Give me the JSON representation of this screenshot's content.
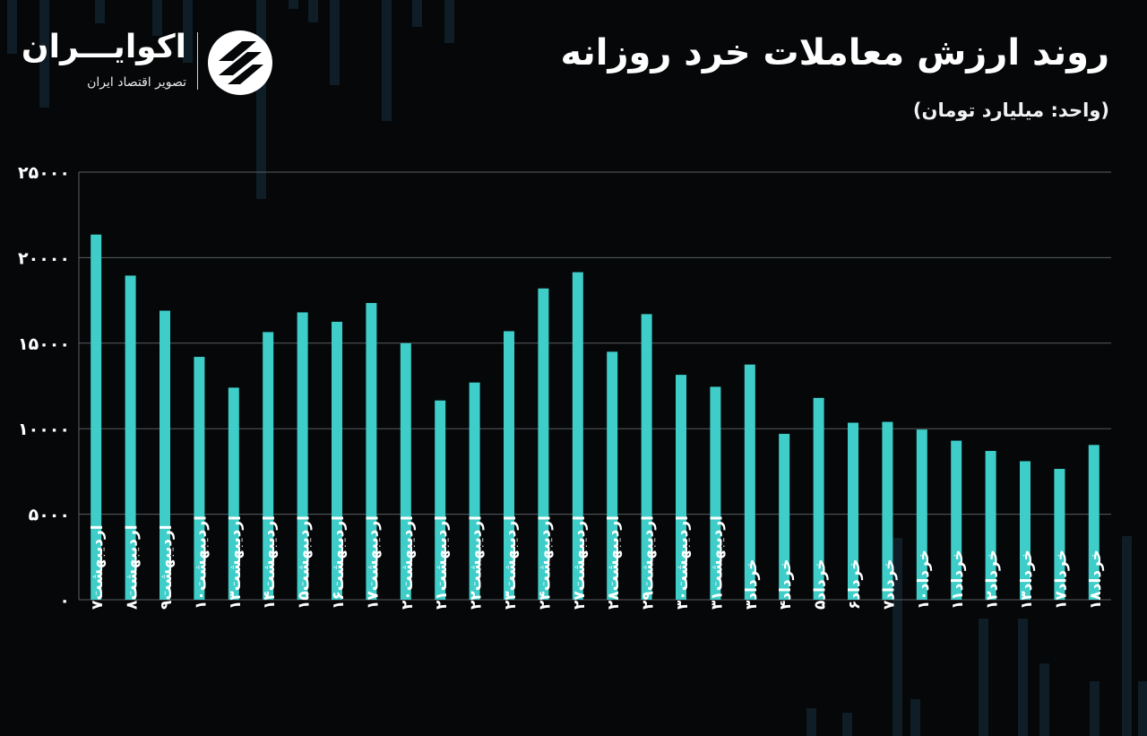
{
  "header": {
    "title": "روند ارزش معاملات خرد روزانه",
    "unit": "(واحد: میلیارد تومان)"
  },
  "brand": {
    "name": "اکوایـــران",
    "subtitle": "تصویر اقتصاد ایران",
    "logo_icon": "ecoiran-logo-icon"
  },
  "colors": {
    "background": "#050708",
    "bar": "#3ecdc8",
    "grid": "#5a5f63",
    "text": "#ffffff"
  },
  "chart_data": {
    "type": "bar",
    "title": "روند ارزش معاملات خرد روزانه",
    "ylabel": "",
    "xlabel": "",
    "ylim": [
      0,
      25000
    ],
    "yticks": [
      0,
      5000,
      10000,
      15000,
      20000,
      25000
    ],
    "ytick_labels": [
      "۰",
      "۵۰۰۰",
      "۱۰۰۰۰",
      "۱۵۰۰۰",
      "۲۰۰۰۰",
      "۲۵۰۰۰"
    ],
    "grid": true,
    "categories": [
      "اردیبهشت۷",
      "اردیبهشت۸",
      "اردیبهشت۹",
      "اردیبهشت۱۰",
      "اردیبهشت۱۳",
      "اردیبهشت۱۴",
      "اردیبهشت۱۵",
      "اردیبهشت۱۶",
      "اردیبهشت۱۷",
      "اردیبهشت۲۰",
      "اردیبهشت۲۱",
      "اردیبهشت۲۲",
      "اردیبهشت۲۳",
      "اردیبهشت۲۴",
      "اردیبهشت۲۷",
      "اردیبهشت۲۸",
      "اردیبهشت۲۹",
      "اردیبهشت۳۰",
      "اردیبهشت۳۱",
      "خرداد۳",
      "خرداد۴",
      "خرداد۵",
      "خرداد۶",
      "خرداد۷",
      "خرداد۱۰",
      "خرداد۱۱",
      "خرداد۱۲",
      "خرداد۱۳",
      "خرداد۱۷",
      "خرداد۱۸"
    ],
    "values": [
      21350,
      18950,
      16900,
      14200,
      12400,
      15650,
      16800,
      16250,
      17350,
      15000,
      11650,
      12700,
      15700,
      18200,
      19150,
      14500,
      16700,
      13150,
      12450,
      13750,
      9700,
      11800,
      10350,
      10400,
      9950,
      9300,
      8700,
      8100,
      7650,
      9050
    ]
  }
}
